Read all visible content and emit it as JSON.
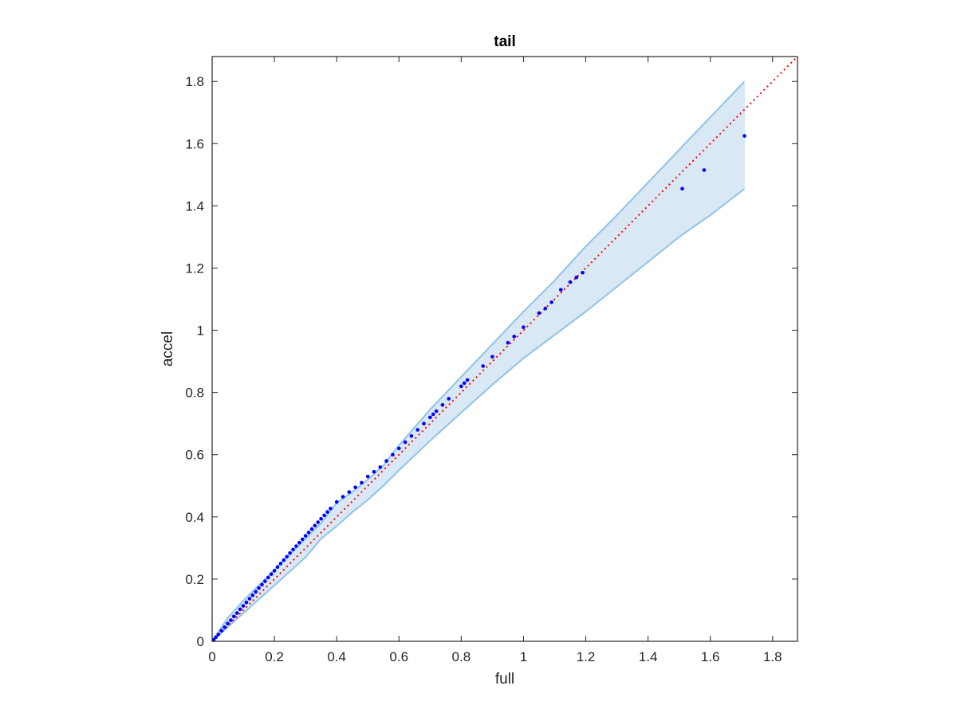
{
  "chart_data": {
    "type": "scatter",
    "title": "tail",
    "xlabel": "full",
    "ylabel": "accel",
    "xlim": [
      0,
      1.88
    ],
    "ylim": [
      0,
      1.88
    ],
    "xticks": [
      0,
      0.2,
      0.4,
      0.6,
      0.8,
      1,
      1.2,
      1.4,
      1.6,
      1.8
    ],
    "yticks": [
      0,
      0.2,
      0.4,
      0.6,
      0.8,
      1,
      1.2,
      1.4,
      1.6,
      1.8
    ],
    "xtick_labels": [
      "0",
      "0.2",
      "0.4",
      "0.6",
      "0.8",
      "1",
      "1.2",
      "1.4",
      "1.6",
      "1.8"
    ],
    "ytick_labels": [
      "0",
      "0.2",
      "0.4",
      "0.6",
      "0.8",
      "1",
      "1.2",
      "1.4",
      "1.6",
      "1.8"
    ],
    "grid": false,
    "reference_line": {
      "style": "dotted",
      "color": "#ff0000",
      "x": [
        0,
        1.88
      ],
      "y": [
        0,
        1.88
      ]
    },
    "band": {
      "fill": "#d9e8f5",
      "edge": "#8fc3e6",
      "x": [
        0,
        0.05,
        0.1,
        0.2,
        0.3,
        0.35,
        0.4,
        0.45,
        0.5,
        0.55,
        0.6,
        0.7,
        0.8,
        0.9,
        1.0,
        1.1,
        1.2,
        1.3,
        1.4,
        1.5,
        1.6,
        1.71
      ],
      "upper": [
        0,
        0.075,
        0.13,
        0.23,
        0.33,
        0.38,
        0.445,
        0.48,
        0.52,
        0.565,
        0.63,
        0.745,
        0.85,
        0.955,
        1.06,
        1.16,
        1.27,
        1.37,
        1.475,
        1.58,
        1.685,
        1.8
      ],
      "lower": [
        0,
        0.045,
        0.09,
        0.18,
        0.27,
        0.33,
        0.37,
        0.415,
        0.455,
        0.5,
        0.55,
        0.645,
        0.735,
        0.825,
        0.91,
        0.985,
        1.06,
        1.14,
        1.22,
        1.3,
        1.37,
        1.455
      ]
    },
    "points": {
      "color": "#0000ff",
      "x": [
        0.005,
        0.012,
        0.02,
        0.03,
        0.04,
        0.05,
        0.06,
        0.07,
        0.08,
        0.09,
        0.1,
        0.11,
        0.12,
        0.13,
        0.14,
        0.15,
        0.16,
        0.17,
        0.18,
        0.19,
        0.2,
        0.21,
        0.22,
        0.23,
        0.24,
        0.25,
        0.26,
        0.27,
        0.28,
        0.29,
        0.3,
        0.31,
        0.32,
        0.33,
        0.34,
        0.35,
        0.36,
        0.37,
        0.38,
        0.4,
        0.42,
        0.44,
        0.46,
        0.48,
        0.5,
        0.52,
        0.54,
        0.56,
        0.58,
        0.6,
        0.62,
        0.64,
        0.66,
        0.68,
        0.7,
        0.71,
        0.72,
        0.74,
        0.76,
        0.8,
        0.81,
        0.82,
        0.87,
        0.9,
        0.95,
        0.97,
        1.0,
        1.05,
        1.07,
        1.09,
        1.12,
        1.15,
        1.17,
        1.19,
        1.51,
        1.58,
        1.71
      ],
      "y": [
        0.005,
        0.013,
        0.022,
        0.034,
        0.045,
        0.057,
        0.068,
        0.08,
        0.091,
        0.103,
        0.114,
        0.125,
        0.137,
        0.148,
        0.159,
        0.171,
        0.182,
        0.193,
        0.205,
        0.216,
        0.227,
        0.239,
        0.25,
        0.261,
        0.272,
        0.284,
        0.295,
        0.306,
        0.317,
        0.328,
        0.339,
        0.35,
        0.361,
        0.372,
        0.383,
        0.394,
        0.405,
        0.416,
        0.427,
        0.448,
        0.465,
        0.48,
        0.495,
        0.51,
        0.53,
        0.545,
        0.56,
        0.58,
        0.6,
        0.62,
        0.64,
        0.66,
        0.68,
        0.7,
        0.72,
        0.73,
        0.74,
        0.76,
        0.78,
        0.82,
        0.83,
        0.84,
        0.885,
        0.915,
        0.96,
        0.98,
        1.01,
        1.055,
        1.07,
        1.09,
        1.13,
        1.155,
        1.17,
        1.185,
        1.455,
        1.515,
        1.625
      ]
    }
  }
}
